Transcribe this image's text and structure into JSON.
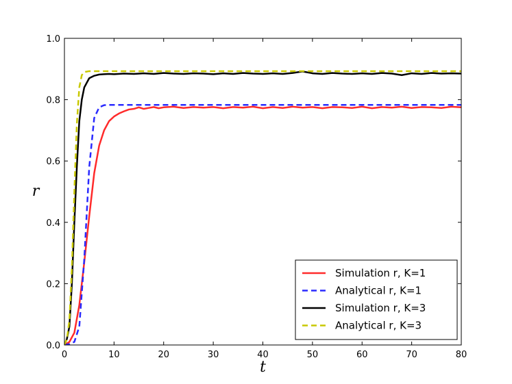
{
  "chart_data": {
    "type": "line",
    "title": "",
    "xlabel": "t",
    "ylabel": "r",
    "xlim": [
      0,
      80
    ],
    "ylim": [
      0.0,
      1.0
    ],
    "xticks": [
      0,
      10,
      20,
      30,
      40,
      50,
      60,
      70,
      80
    ],
    "yticks": [
      0.0,
      0.2,
      0.4,
      0.6,
      0.8,
      1.0
    ],
    "xtick_labels": [
      "0",
      "10",
      "20",
      "30",
      "40",
      "50",
      "60",
      "70",
      "80"
    ],
    "ytick_labels": [
      "0.0",
      "0.2",
      "0.4",
      "0.6",
      "0.8",
      "1.0"
    ],
    "grid": false,
    "legend_position": "bottom-right",
    "series": [
      {
        "name": "Simulation r, K=1",
        "color": "#ff2a2a",
        "style": "solid",
        "x": [
          0,
          1,
          2,
          3,
          4,
          5,
          6,
          7,
          8,
          9,
          10,
          11,
          12,
          13,
          14,
          15,
          16,
          17,
          18,
          19,
          20,
          22,
          24,
          26,
          28,
          30,
          32,
          34,
          36,
          38,
          40,
          42,
          44,
          46,
          48,
          50,
          52,
          54,
          56,
          58,
          60,
          62,
          64,
          66,
          68,
          70,
          72,
          74,
          76,
          78,
          80
        ],
        "y": [
          0.0,
          0.01,
          0.04,
          0.13,
          0.27,
          0.42,
          0.56,
          0.65,
          0.7,
          0.73,
          0.745,
          0.755,
          0.762,
          0.768,
          0.77,
          0.775,
          0.77,
          0.773,
          0.776,
          0.772,
          0.775,
          0.777,
          0.773,
          0.776,
          0.774,
          0.776,
          0.772,
          0.776,
          0.774,
          0.777,
          0.772,
          0.776,
          0.773,
          0.777,
          0.774,
          0.776,
          0.772,
          0.776,
          0.775,
          0.773,
          0.777,
          0.772,
          0.776,
          0.774,
          0.777,
          0.773,
          0.776,
          0.775,
          0.773,
          0.777,
          0.775
        ]
      },
      {
        "name": "Analytical r, K=1",
        "color": "#2a2aff",
        "style": "dashed",
        "x": [
          0,
          1,
          2,
          3,
          4,
          5,
          6,
          7,
          8,
          9,
          10,
          20,
          30,
          40,
          50,
          60,
          70,
          80
        ],
        "y": [
          0.0,
          0.003,
          0.01,
          0.06,
          0.28,
          0.58,
          0.74,
          0.775,
          0.782,
          0.783,
          0.783,
          0.783,
          0.783,
          0.783,
          0.783,
          0.783,
          0.783,
          0.783
        ]
      },
      {
        "name": "Simulation r, K=3",
        "color": "#000000",
        "style": "solid",
        "x": [
          0,
          0.5,
          1,
          1.5,
          2,
          2.5,
          3,
          3.5,
          4,
          5,
          6,
          7,
          8,
          9,
          10,
          12,
          14,
          16,
          18,
          20,
          22,
          24,
          26,
          28,
          30,
          32,
          34,
          36,
          38,
          40,
          42,
          44,
          46,
          48,
          50,
          52,
          54,
          56,
          58,
          60,
          62,
          64,
          66,
          68,
          70,
          72,
          74,
          76,
          78,
          80
        ],
        "y": [
          0.0,
          0.02,
          0.06,
          0.2,
          0.4,
          0.58,
          0.73,
          0.8,
          0.84,
          0.87,
          0.878,
          0.882,
          0.883,
          0.884,
          0.883,
          0.885,
          0.884,
          0.886,
          0.884,
          0.887,
          0.885,
          0.884,
          0.886,
          0.885,
          0.883,
          0.886,
          0.884,
          0.887,
          0.885,
          0.884,
          0.886,
          0.884,
          0.887,
          0.892,
          0.886,
          0.884,
          0.887,
          0.885,
          0.884,
          0.886,
          0.884,
          0.887,
          0.885,
          0.88,
          0.886,
          0.884,
          0.887,
          0.885,
          0.886,
          0.885
        ]
      },
      {
        "name": "Analytical r, K=3",
        "color": "#c8c800",
        "style": "dashed",
        "x": [
          0,
          0.5,
          1,
          1.5,
          2,
          2.5,
          3,
          3.5,
          4,
          5,
          10,
          20,
          30,
          40,
          50,
          60,
          70,
          80
        ],
        "y": [
          0.0,
          0.02,
          0.08,
          0.25,
          0.5,
          0.72,
          0.84,
          0.88,
          0.89,
          0.893,
          0.893,
          0.893,
          0.893,
          0.893,
          0.893,
          0.893,
          0.893,
          0.893
        ]
      }
    ]
  }
}
